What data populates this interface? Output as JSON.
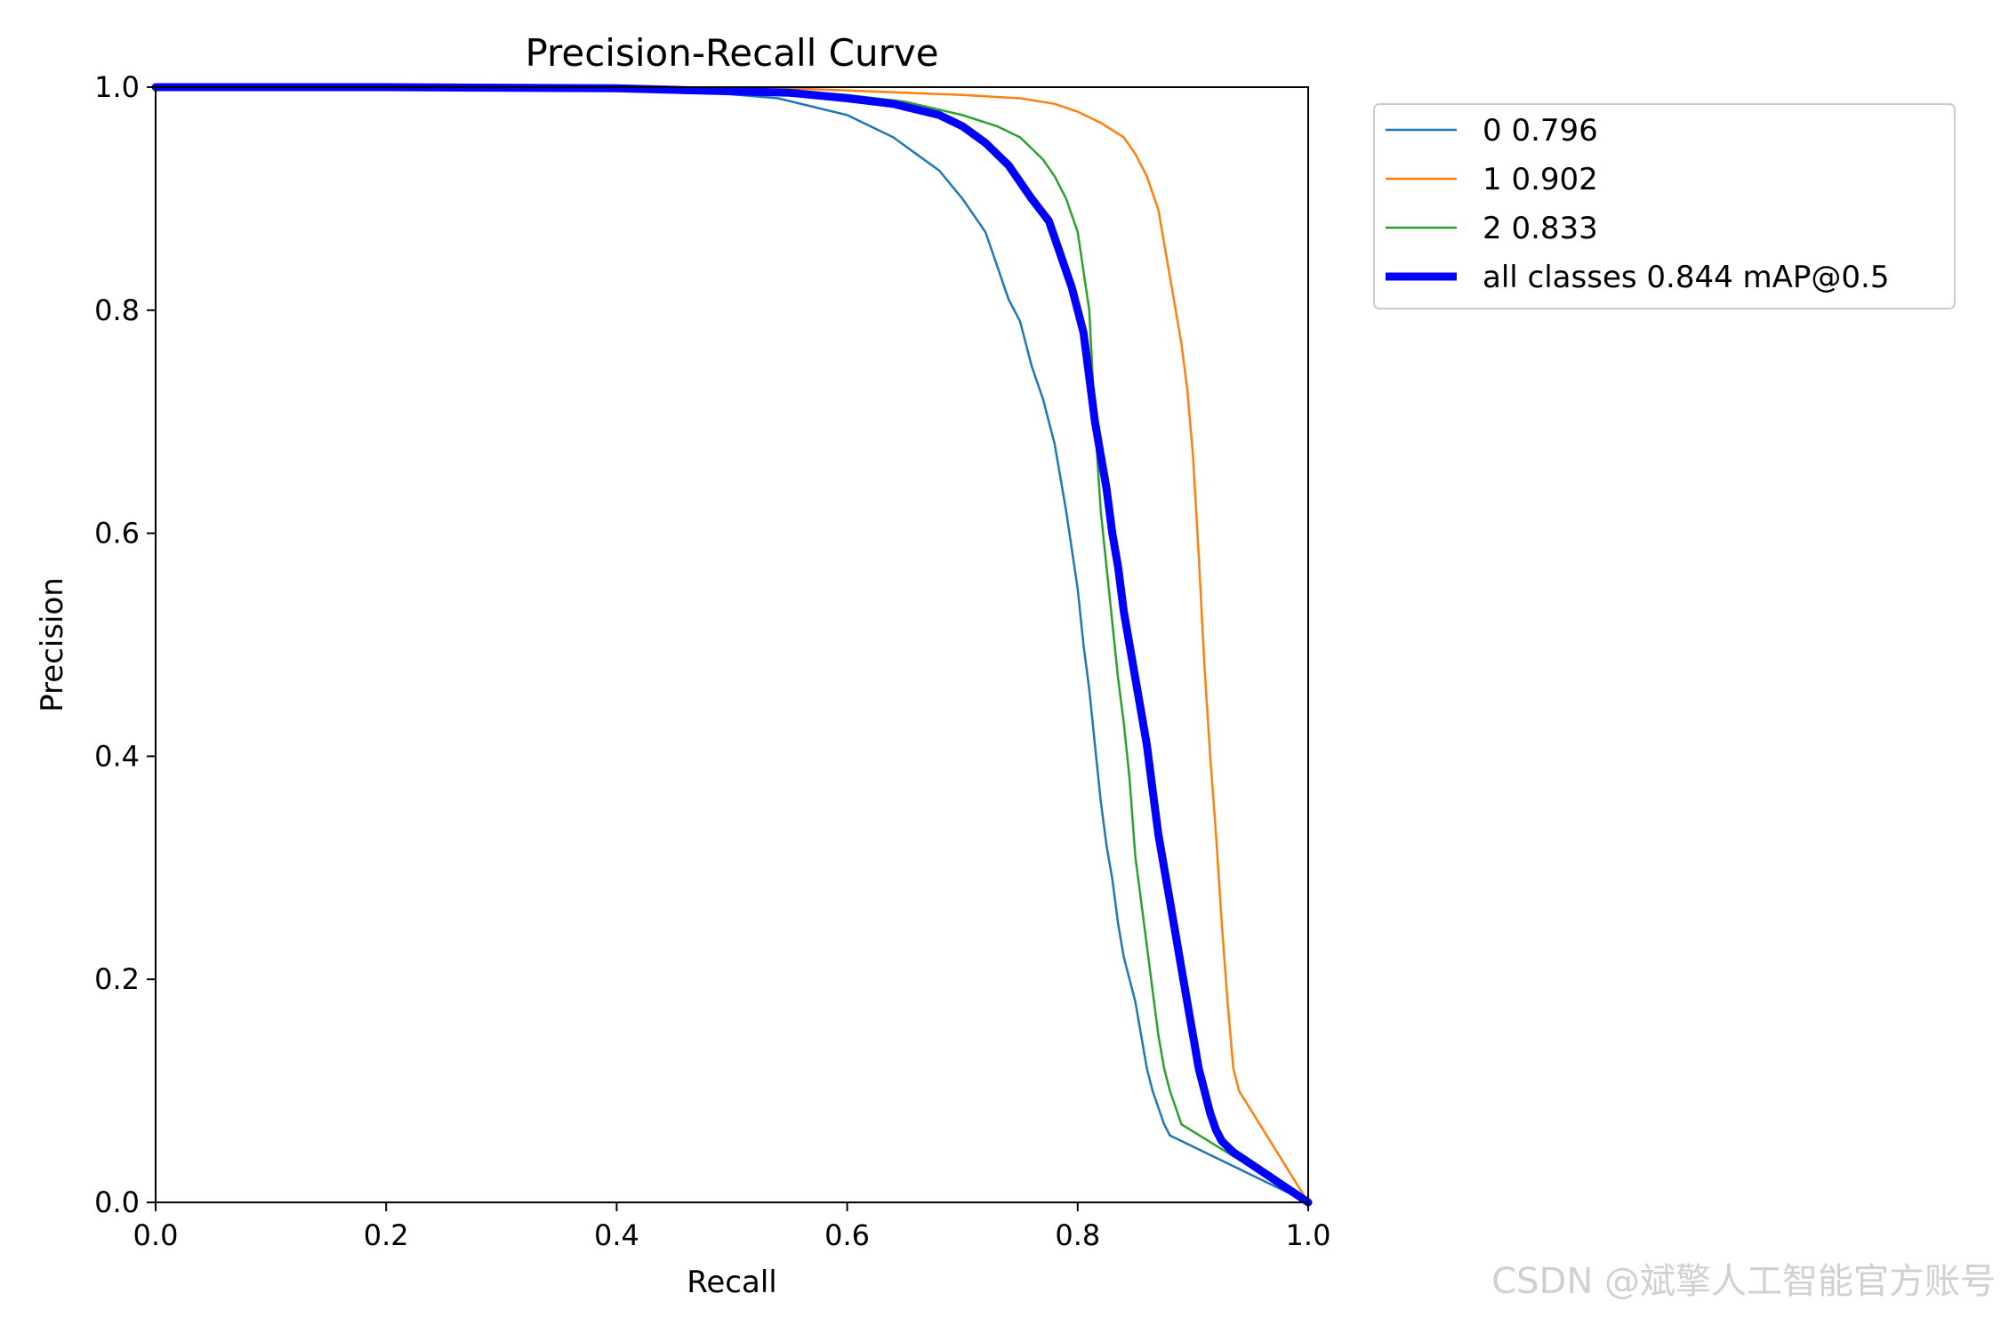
{
  "chart_data": {
    "type": "line",
    "title": "Precision-Recall Curve",
    "xlabel": "Recall",
    "ylabel": "Precision",
    "xlim": [
      0,
      1
    ],
    "ylim": [
      0,
      1
    ],
    "xticks": [
      "0.0",
      "0.2",
      "0.4",
      "0.6",
      "0.8",
      "1.0"
    ],
    "yticks": [
      "0.0",
      "0.2",
      "0.4",
      "0.6",
      "0.8",
      "1.0"
    ],
    "grid": false,
    "legend_position": "outside-top-right",
    "series": [
      {
        "name": "0 0.796",
        "color": "#1f77b4",
        "weight": "thin",
        "x": [
          0.0,
          0.1,
          0.3,
          0.45,
          0.54,
          0.58,
          0.6,
          0.62,
          0.64,
          0.66,
          0.68,
          0.7,
          0.72,
          0.73,
          0.74,
          0.75,
          0.76,
          0.77,
          0.78,
          0.79,
          0.8,
          0.805,
          0.81,
          0.815,
          0.82,
          0.825,
          0.83,
          0.835,
          0.84,
          0.845,
          0.85,
          0.855,
          0.86,
          0.865,
          0.87,
          0.875,
          0.88,
          1.0
        ],
        "y": [
          1.0,
          1.0,
          0.999,
          0.998,
          0.99,
          0.98,
          0.975,
          0.965,
          0.955,
          0.94,
          0.925,
          0.9,
          0.87,
          0.84,
          0.81,
          0.79,
          0.75,
          0.72,
          0.68,
          0.62,
          0.55,
          0.5,
          0.46,
          0.41,
          0.36,
          0.32,
          0.29,
          0.25,
          0.22,
          0.2,
          0.18,
          0.15,
          0.12,
          0.1,
          0.085,
          0.07,
          0.06,
          0.0
        ]
      },
      {
        "name": "1 0.902",
        "color": "#ff7f0e",
        "weight": "thin",
        "x": [
          0.0,
          0.2,
          0.4,
          0.55,
          0.6,
          0.65,
          0.7,
          0.75,
          0.78,
          0.8,
          0.82,
          0.84,
          0.85,
          0.86,
          0.87,
          0.875,
          0.88,
          0.885,
          0.89,
          0.895,
          0.9,
          0.905,
          0.91,
          0.915,
          0.92,
          0.925,
          0.93,
          0.935,
          0.94,
          1.0
        ],
        "y": [
          1.0,
          1.0,
          1.0,
          0.999,
          0.997,
          0.995,
          0.993,
          0.99,
          0.985,
          0.978,
          0.968,
          0.955,
          0.94,
          0.92,
          0.89,
          0.86,
          0.83,
          0.8,
          0.77,
          0.73,
          0.67,
          0.58,
          0.48,
          0.4,
          0.33,
          0.25,
          0.18,
          0.12,
          0.1,
          0.0
        ]
      },
      {
        "name": "2 0.833",
        "color": "#2ca02c",
        "weight": "thin",
        "x": [
          0.0,
          0.2,
          0.4,
          0.55,
          0.6,
          0.65,
          0.7,
          0.73,
          0.75,
          0.77,
          0.78,
          0.79,
          0.8,
          0.81,
          0.815,
          0.82,
          0.825,
          0.83,
          0.835,
          0.84,
          0.845,
          0.85,
          0.855,
          0.86,
          0.865,
          0.87,
          0.875,
          0.88,
          0.885,
          0.89,
          1.0
        ],
        "y": [
          1.0,
          1.0,
          0.999,
          0.997,
          0.993,
          0.987,
          0.975,
          0.965,
          0.955,
          0.935,
          0.92,
          0.9,
          0.87,
          0.8,
          0.7,
          0.62,
          0.57,
          0.52,
          0.47,
          0.43,
          0.38,
          0.31,
          0.27,
          0.23,
          0.19,
          0.15,
          0.12,
          0.1,
          0.085,
          0.07,
          0.0
        ]
      },
      {
        "name": "all classes 0.844 mAP@0.5",
        "color": "#0000ff",
        "weight": "thick",
        "x": [
          0.0,
          0.2,
          0.4,
          0.55,
          0.6,
          0.64,
          0.68,
          0.7,
          0.72,
          0.74,
          0.76,
          0.775,
          0.785,
          0.795,
          0.805,
          0.81,
          0.815,
          0.82,
          0.825,
          0.83,
          0.835,
          0.84,
          0.845,
          0.85,
          0.855,
          0.86,
          0.865,
          0.87,
          0.875,
          0.88,
          0.885,
          0.89,
          0.895,
          0.9,
          0.905,
          0.91,
          0.915,
          0.92,
          0.925,
          0.93,
          0.935,
          1.0
        ],
        "y": [
          1.0,
          1.0,
          0.999,
          0.995,
          0.99,
          0.985,
          0.975,
          0.965,
          0.95,
          0.93,
          0.9,
          0.88,
          0.85,
          0.82,
          0.78,
          0.74,
          0.7,
          0.67,
          0.64,
          0.6,
          0.57,
          0.53,
          0.5,
          0.47,
          0.44,
          0.41,
          0.37,
          0.33,
          0.3,
          0.27,
          0.24,
          0.21,
          0.18,
          0.15,
          0.12,
          0.1,
          0.08,
          0.065,
          0.055,
          0.05,
          0.045,
          0.0
        ]
      }
    ]
  },
  "watermark": "CSDN @斌擎人工智能官方账号"
}
